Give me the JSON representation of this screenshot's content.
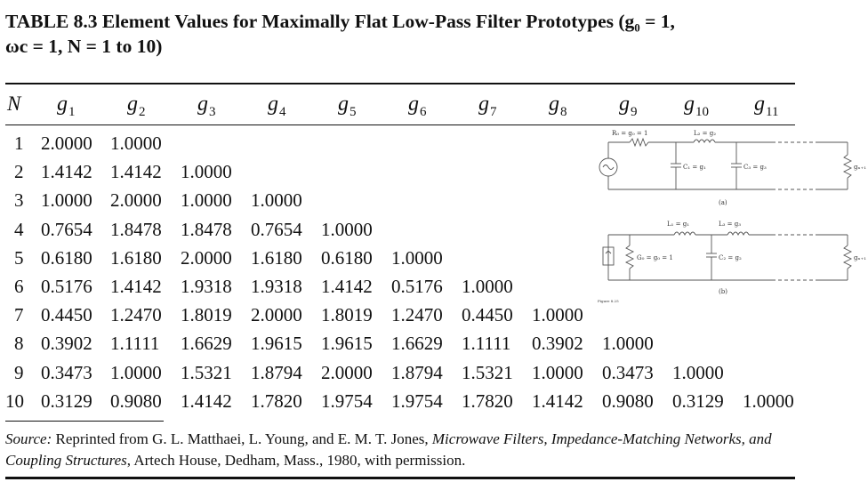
{
  "title": {
    "line1": "TABLE 8.3    Element Values for Maximally Flat Low-Pass Filter Prototypes (g₀ = 1,",
    "line2": "ωc  =  1, N = 1 to 10)"
  },
  "headers": [
    "N",
    "g",
    "g",
    "g",
    "g",
    "g",
    "g",
    "g",
    "g",
    "g",
    "g",
    "g"
  ],
  "header_subs": [
    "",
    "1",
    "2",
    "3",
    "4",
    "5",
    "6",
    "7",
    "8",
    "9",
    "10",
    "11"
  ],
  "rows": [
    {
      "n": "1",
      "values": [
        "2.0000",
        "1.0000"
      ]
    },
    {
      "n": "2",
      "values": [
        "1.4142",
        "1.4142",
        "1.0000"
      ]
    },
    {
      "n": "3",
      "values": [
        "1.0000",
        "2.0000",
        "1.0000",
        "1.0000"
      ]
    },
    {
      "n": "4",
      "values": [
        "0.7654",
        "1.8478",
        "1.8478",
        "0.7654",
        "1.0000"
      ]
    },
    {
      "n": "5",
      "values": [
        "0.6180",
        "1.6180",
        "2.0000",
        "1.6180",
        "0.6180",
        "1.0000"
      ]
    },
    {
      "n": "6",
      "values": [
        "0.5176",
        "1.4142",
        "1.9318",
        "1.9318",
        "1.4142",
        "0.5176",
        "1.0000"
      ]
    },
    {
      "n": "7",
      "values": [
        "0.4450",
        "1.2470",
        "1.8019",
        "2.0000",
        "1.8019",
        "1.2470",
        "0.4450",
        "1.0000"
      ]
    },
    {
      "n": "8",
      "values": [
        "0.3902",
        "1.1111",
        "1.6629",
        "1.9615",
        "1.9615",
        "1.6629",
        "1.1111",
        "0.3902",
        "1.0000"
      ]
    },
    {
      "n": "9",
      "values": [
        "0.3473",
        "1.0000",
        "1.5321",
        "1.8794",
        "2.0000",
        "1.8794",
        "1.5321",
        "1.0000",
        "0.3473",
        "1.0000"
      ]
    },
    {
      "n": "10",
      "values": [
        "0.3129",
        "0.9080",
        "1.4142",
        "1.7820",
        "1.9754",
        "1.9754",
        "1.7820",
        "1.4142",
        "0.9080",
        "0.3129",
        "1.0000"
      ]
    }
  ],
  "figure": {
    "labels_a": {
      "r0": "R₀ = g₀ = 1",
      "l2": "L₂ = g₂",
      "c1": "C₁ = g₁",
      "c3": "C₃ = g₃",
      "load": "gₙ₊₁",
      "caption": "(a)"
    },
    "labels_b": {
      "l1": "L₁ = g₁",
      "l3": "L₃ = g₃",
      "g0": "G₀ = g₀ = 1",
      "c2": "C₂ = g₂",
      "load": "gₙ₊₁",
      "caption": "(b)"
    },
    "credit": "Figure 8.25"
  },
  "source": {
    "label": "Source:",
    "text1": " Reprinted from G. L. Matthaei, L. Young, and E. M. T. Jones, ",
    "italic": "Microwave Filters, Impedance-Matching Networks, and Coupling Structures",
    "text2": ", Artech House, Dedham, Mass., 1980, with permission."
  }
}
